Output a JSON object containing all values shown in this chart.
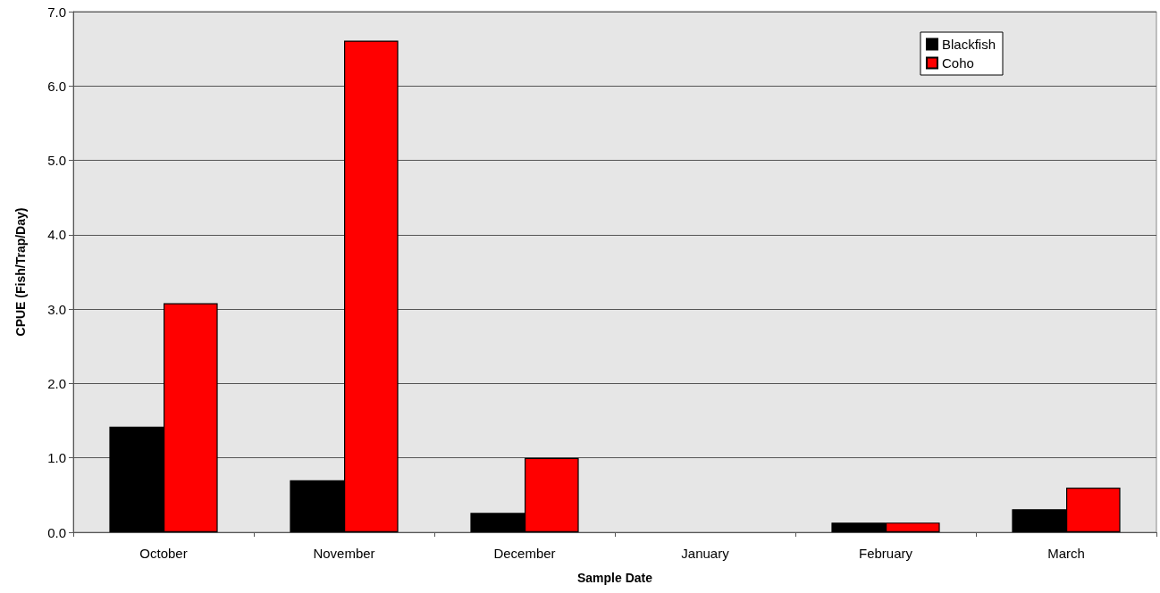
{
  "chart_data": {
    "type": "bar",
    "xlabel": "Sample Date",
    "ylabel": "CPUE (Fish/Trap/Day)",
    "categories": [
      "October",
      "November",
      "December",
      "January",
      "February",
      "March"
    ],
    "series": [
      {
        "name": "Blackfish",
        "color": "#000000",
        "values": [
          1.42,
          0.7,
          0.26,
          0,
          0.13,
          0.31
        ]
      },
      {
        "name": "Coho",
        "color": "#ff0000",
        "values": [
          3.08,
          6.61,
          1.0,
          0,
          0.13,
          0.6
        ]
      }
    ],
    "ylim": [
      0,
      7
    ],
    "yticks": [
      {
        "value": 0,
        "label": "0.0"
      },
      {
        "value": 1,
        "label": "1.0"
      },
      {
        "value": 2,
        "label": "2.0"
      },
      {
        "value": 3,
        "label": "3.0"
      },
      {
        "value": 4,
        "label": "4.0"
      },
      {
        "value": 5,
        "label": "5.0"
      },
      {
        "value": 6,
        "label": "6.0"
      },
      {
        "value": 7,
        "label": "7.0"
      }
    ],
    "grid": "y",
    "legend": "top right"
  }
}
